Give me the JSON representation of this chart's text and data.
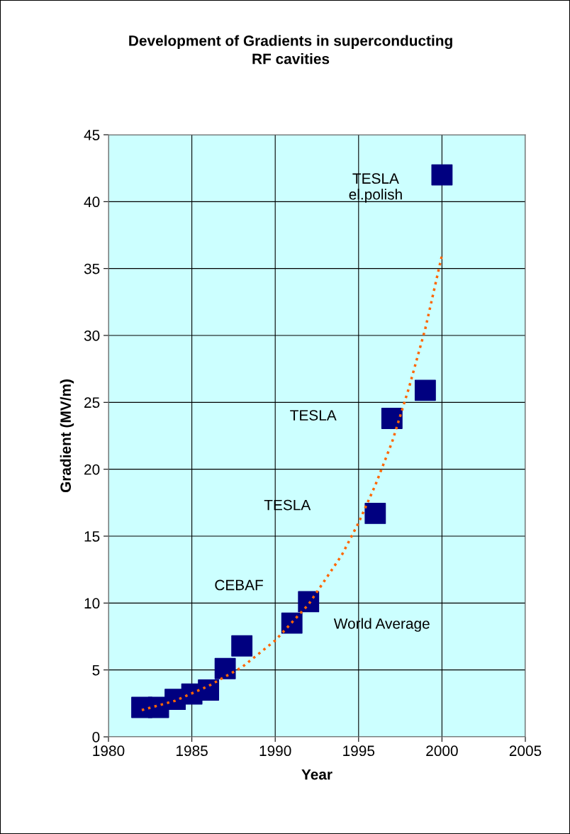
{
  "chart_data": {
    "type": "scatter",
    "title": "Development of Gradients in superconducting\nRF cavities",
    "xlabel": "Year",
    "ylabel": "Gradient (MV/m)",
    "series": [
      {
        "color": "#000080",
        "marker": "square",
        "x": [
          1982,
          1983,
          1984,
          1985,
          1986,
          1987,
          1988,
          1991,
          1992,
          1996,
          1997,
          1999,
          2000
        ],
        "values": [
          2.2,
          2.2,
          2.8,
          3.2,
          3.5,
          5.1,
          6.8,
          8.5,
          10.1,
          16.7,
          23.8,
          25.9,
          42.0
        ]
      },
      {
        "type": "line",
        "color": "#ff6600",
        "line_style": "dotted",
        "marker": "none",
        "x": [
          1982,
          1984,
          1986,
          1988,
          1990,
          1992,
          1994,
          1995,
          1996,
          1997,
          1998,
          1999,
          2000
        ],
        "values": [
          2.0,
          2.7,
          3.8,
          5.2,
          7.2,
          9.9,
          13.6,
          16.0,
          18.8,
          22.0,
          26.0,
          30.5,
          36.0
        ]
      }
    ],
    "annotations": [
      "TESLA\nel.polish",
      "TESLA",
      "TESLA",
      "CEBAF",
      "World Average"
    ],
    "xlim": [
      1980,
      2005
    ],
    "xticks": [
      1980,
      1985,
      1990,
      1995,
      2000,
      2005
    ],
    "ylim": [
      0,
      45
    ],
    "yticks": [
      0,
      5,
      10,
      15,
      20,
      25,
      30,
      35,
      40,
      45
    ],
    "grid": true,
    "legend": false
  }
}
